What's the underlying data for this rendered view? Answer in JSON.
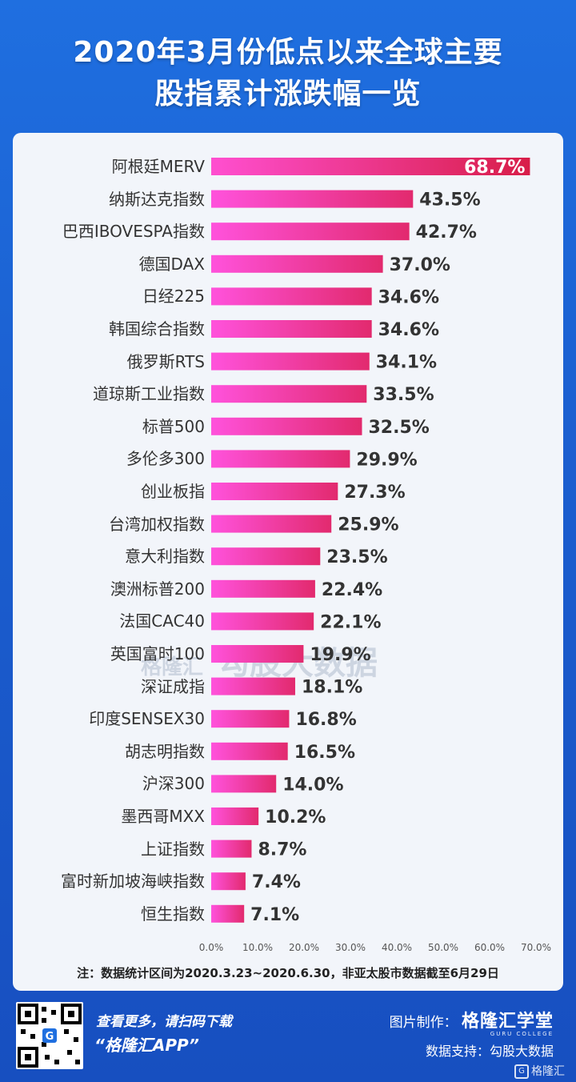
{
  "title_line1": "2020年3月份低点以来全球主要",
  "title_line2": "股指累计涨跌幅一览",
  "chart_data": {
    "type": "bar",
    "orientation": "horizontal",
    "categories": [
      "阿根廷MERV",
      "纳斯达克指数",
      "巴西IBOVESPA指数",
      "德国DAX",
      "日经225",
      "韩国综合指数",
      "俄罗斯RTS",
      "道琼斯工业指数",
      "标普500",
      "多伦多300",
      "创业板指",
      "台湾加权指数",
      "意大利指数",
      "澳洲标普200",
      "法国CAC40",
      "英国富时100",
      "深证成指",
      "印度SENSEX30",
      "胡志明指数",
      "沪深300",
      "墨西哥MXX",
      "上证指数",
      "富时新加坡海峡指数",
      "恒生指数"
    ],
    "values": [
      68.7,
      43.5,
      42.7,
      37.0,
      34.6,
      34.6,
      34.1,
      33.5,
      32.5,
      29.9,
      27.3,
      25.9,
      23.5,
      22.4,
      22.1,
      19.9,
      18.1,
      16.8,
      16.5,
      14.0,
      10.2,
      8.7,
      7.4,
      7.1
    ],
    "value_labels": [
      "68.7%",
      "43.5%",
      "42.7%",
      "37.0%",
      "34.6%",
      "34.6%",
      "34.1%",
      "33.5%",
      "32.5%",
      "29.9%",
      "27.3%",
      "25.9%",
      "23.5%",
      "22.4%",
      "22.1%",
      "19.9%",
      "18.1%",
      "16.8%",
      "16.5%",
      "14.0%",
      "10.2%",
      "8.7%",
      "7.4%",
      "7.1%"
    ],
    "xlim": [
      0,
      70
    ],
    "xticks": [
      "0.0%",
      "10.0%",
      "20.0%",
      "30.0%",
      "40.0%",
      "50.0%",
      "60.0%",
      "70.0%"
    ],
    "highlight_color": "#e0244e",
    "bar_color_start": "#ff4fd8",
    "bar_color_end": "#e0246b",
    "grid": false
  },
  "footnote": "注：数据统计区间为2020.3.23~2020.6.30，非亚太股市数据截至6月29日",
  "watermark_small": "格隆汇",
  "watermark_small_url": "www.gelonghui.com",
  "watermark_big": "勾股大数据",
  "promo_line1": "查看更多，请扫码下载",
  "promo_line2": "“格隆汇APP”",
  "credit_label": "图片制作：",
  "credit_brand": "格隆汇学堂",
  "credit_brand_sub": "GURU COLLEGE",
  "source_text": "数据支持：勾股大数据",
  "corner_logo_text": "格隆汇"
}
